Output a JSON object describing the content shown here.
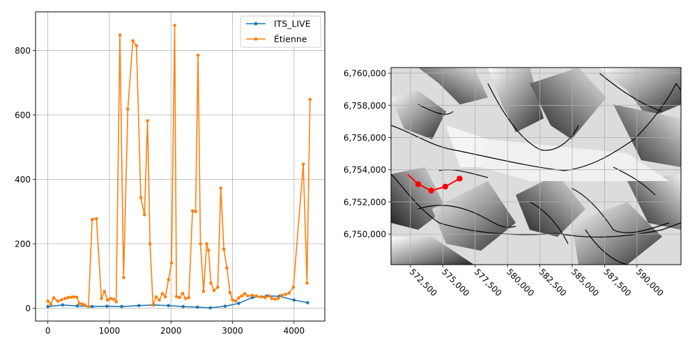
{
  "chart_data": [
    {
      "type": "line",
      "title": "",
      "xlabel": "",
      "ylabel": "",
      "xlim": [
        -200,
        4500
      ],
      "ylim": [
        -40,
        920
      ],
      "xticks": [
        0,
        1000,
        2000,
        3000,
        4000
      ],
      "yticks": [
        0,
        200,
        400,
        600,
        800
      ],
      "grid": true,
      "legend_position": "top-right",
      "series": [
        {
          "name": "ITS_LIVE",
          "color": "#1f77b4",
          "x": [
            0,
            240,
            480,
            720,
            960,
            1200,
            1480,
            1720,
            1960,
            2200,
            2430,
            2640,
            2880,
            3100,
            3320,
            3560,
            3760,
            4000,
            4220
          ],
          "y": [
            5,
            10,
            7,
            5,
            6,
            5,
            8,
            10,
            8,
            5,
            3,
            1,
            6,
            15,
            33,
            38,
            37,
            25,
            17
          ]
        },
        {
          "name": "Étienne",
          "color": "#ff7f0e",
          "x": [
            0,
            48,
            96,
            160,
            220,
            280,
            330,
            380,
            420,
            470,
            510,
            555,
            600,
            660,
            720,
            790,
            870,
            920,
            970,
            1020,
            1070,
            1110,
            1170,
            1230,
            1300,
            1380,
            1440,
            1510,
            1570,
            1620,
            1660,
            1710,
            1760,
            1810,
            1860,
            1910,
            1960,
            2010,
            2060,
            2090,
            2140,
            2190,
            2240,
            2290,
            2350,
            2400,
            2440,
            2480,
            2530,
            2580,
            2610,
            2650,
            2700,
            2760,
            2810,
            2860,
            2910,
            2960,
            3000,
            3050,
            3100,
            3150,
            3200,
            3250,
            3320,
            3390,
            3460,
            3530,
            3590,
            3640,
            3690,
            3740,
            3800,
            3860,
            3920,
            3990,
            4150,
            4210,
            4260
          ],
          "y": [
            22,
            12,
            32,
            22,
            26,
            30,
            33,
            34,
            35,
            34,
            15,
            13,
            10,
            5,
            275,
            278,
            30,
            52,
            25,
            30,
            28,
            20,
            848,
            95,
            618,
            830,
            815,
            343,
            290,
            582,
            200,
            10,
            35,
            25,
            45,
            35,
            88,
            140,
            878,
            36,
            33,
            46,
            30,
            33,
            302,
            300,
            785,
            200,
            52,
            200,
            180,
            78,
            55,
            65,
            373,
            183,
            125,
            48,
            25,
            22,
            32,
            38,
            45,
            38,
            40,
            38,
            35,
            33,
            38,
            30,
            28,
            30,
            40,
            43,
            47,
            65,
            447,
            78,
            648
          ]
        }
      ]
    },
    {
      "type": "map",
      "title": "",
      "xlim": [
        571000,
        593400
      ],
      "ylim": [
        6748100,
        6760350
      ],
      "xticks": [
        572500,
        575000,
        577500,
        580000,
        582500,
        585000,
        587500,
        590000
      ],
      "xtick_labels": [
        "572,500",
        "575,000",
        "577,500",
        "580,000",
        "582,500",
        "585,000",
        "587,500",
        "590,000"
      ],
      "yticks": [
        6750000,
        6752000,
        6754000,
        6756000,
        6758000,
        6760000
      ],
      "ytick_labels": [
        "6,750,000",
        "6,752,000",
        "6,754,000",
        "6,756,000",
        "6,758,000",
        "6,760,000"
      ],
      "grid": true,
      "path_color": "#ff0000",
      "path_points": [
        {
          "x": 572300,
          "y": 6753700
        },
        {
          "x": 573100,
          "y": 6753100
        },
        {
          "x": 574100,
          "y": 6752700
        },
        {
          "x": 575200,
          "y": 6752950
        },
        {
          "x": 576300,
          "y": 6753450
        }
      ]
    }
  ]
}
